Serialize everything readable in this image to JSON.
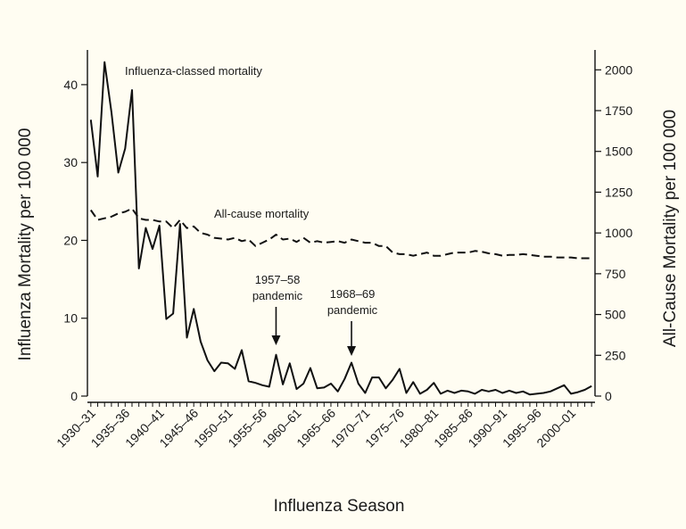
{
  "chart_data": {
    "type": "line",
    "xlabel": "Influenza Season",
    "ylabel_left": "Influenza Mortality per 100 000",
    "ylabel_right": "All-Cause Mortality per 100 000",
    "ylim_left": [
      0,
      44
    ],
    "ylim_right": [
      0,
      2100
    ],
    "yticks_left": [
      0,
      10,
      20,
      30,
      40
    ],
    "yticks_right": [
      0,
      250,
      500,
      750,
      1000,
      1250,
      1500,
      1750,
      2000
    ],
    "x_tick_labels": [
      "1930–31",
      "1935–36",
      "1940–41",
      "1945–46",
      "1950–51",
      "1955–56",
      "1960–61",
      "1965–66",
      "1970–71",
      "1975–76",
      "1980–81",
      "1985–86",
      "1990–91",
      "1995–96",
      "2000–01"
    ],
    "x_tick_start_year": 1930,
    "x_tick_step": 5,
    "x_range": [
      1929.5,
      2003.5
    ],
    "grid": false,
    "series": [
      {
        "name": "Influenza-classed mortality",
        "axis": "left",
        "color": "#111111",
        "dash": "solid",
        "x": [
          1930,
          1931,
          1932,
          1933,
          1934,
          1935,
          1936,
          1937,
          1938,
          1939,
          1940,
          1941,
          1942,
          1943,
          1944,
          1945,
          1946,
          1947,
          1948,
          1949,
          1950,
          1951,
          1952,
          1953,
          1954,
          1955,
          1956,
          1957,
          1958,
          1959,
          1960,
          1961,
          1962,
          1963,
          1964,
          1965,
          1966,
          1967,
          1968,
          1969,
          1970,
          1971,
          1972,
          1973,
          1974,
          1975,
          1976,
          1977,
          1978,
          1979,
          1980,
          1981,
          1982,
          1983,
          1984,
          1985,
          1986,
          1987,
          1988,
          1989,
          1990,
          1991,
          1992,
          1993,
          1994,
          1995,
          1996,
          1997,
          1998,
          1999,
          2000,
          2001,
          2002,
          2003
        ],
        "y": [
          35.5,
          28.2,
          42.9,
          36.5,
          28.7,
          31.8,
          39.3,
          16.4,
          21.6,
          18.9,
          21.9,
          9.9,
          10.6,
          22.1,
          7.5,
          11.2,
          7.0,
          4.6,
          3.2,
          4.3,
          4.2,
          3.5,
          5.9,
          1.9,
          1.7,
          1.4,
          1.2,
          5.3,
          1.5,
          4.2,
          0.9,
          1.6,
          3.6,
          1.0,
          1.1,
          1.6,
          0.6,
          2.2,
          4.3,
          1.6,
          0.4,
          2.4,
          2.4,
          1.0,
          2.1,
          3.5,
          0.4,
          1.8,
          0.3,
          0.8,
          1.7,
          0.3,
          0.7,
          0.4,
          0.7,
          0.6,
          0.3,
          0.8,
          0.6,
          0.8,
          0.4,
          0.7,
          0.4,
          0.6,
          0.2,
          0.3,
          0.4,
          0.6,
          1.0,
          1.4,
          0.3,
          0.5,
          0.8,
          1.3
        ]
      },
      {
        "name": "All-cause mortality",
        "axis": "right",
        "color": "#111111",
        "dash": "dashed",
        "x": [
          1930,
          1931,
          1932,
          1933,
          1934,
          1935,
          1936,
          1937,
          1938,
          1939,
          1940,
          1941,
          1942,
          1943,
          1944,
          1945,
          1946,
          1947,
          1948,
          1949,
          1950,
          1951,
          1952,
          1953,
          1954,
          1955,
          1956,
          1957,
          1958,
          1959,
          1960,
          1961,
          1962,
          1963,
          1964,
          1965,
          1966,
          1967,
          1968,
          1969,
          1970,
          1971,
          1972,
          1973,
          1974,
          1975,
          1976,
          1977,
          1978,
          1979,
          1980,
          1981,
          1982,
          1983,
          1984,
          1985,
          1986,
          1987,
          1988,
          1989,
          1990,
          1991,
          1992,
          1993,
          1994,
          1995,
          1996,
          1997,
          1998,
          1999,
          2000,
          2001,
          2002,
          2003
        ],
        "y": [
          1140,
          1080,
          1090,
          1100,
          1120,
          1130,
          1150,
          1090,
          1080,
          1080,
          1070,
          1070,
          1030,
          1080,
          1030,
          1040,
          1000,
          990,
          970,
          965,
          960,
          970,
          950,
          960,
          920,
          940,
          960,
          990,
          960,
          965,
          945,
          970,
          940,
          950,
          940,
          945,
          950,
          940,
          960,
          950,
          940,
          940,
          920,
          920,
          880,
          870,
          870,
          860,
          870,
          880,
          860,
          860,
          870,
          880,
          880,
          880,
          890,
          885,
          875,
          870,
          860,
          865,
          865,
          870,
          865,
          860,
          855,
          855,
          850,
          850,
          850,
          845,
          845,
          845
        ]
      }
    ],
    "annotations": [
      {
        "text": "Influenza-classed mortality"
      },
      {
        "text": "All-cause mortality"
      },
      {
        "text_lines": [
          "1957–58",
          "pandemic"
        ],
        "x": 1957
      },
      {
        "text_lines": [
          "1968–69",
          "pandemic"
        ],
        "x": 1968
      }
    ]
  }
}
